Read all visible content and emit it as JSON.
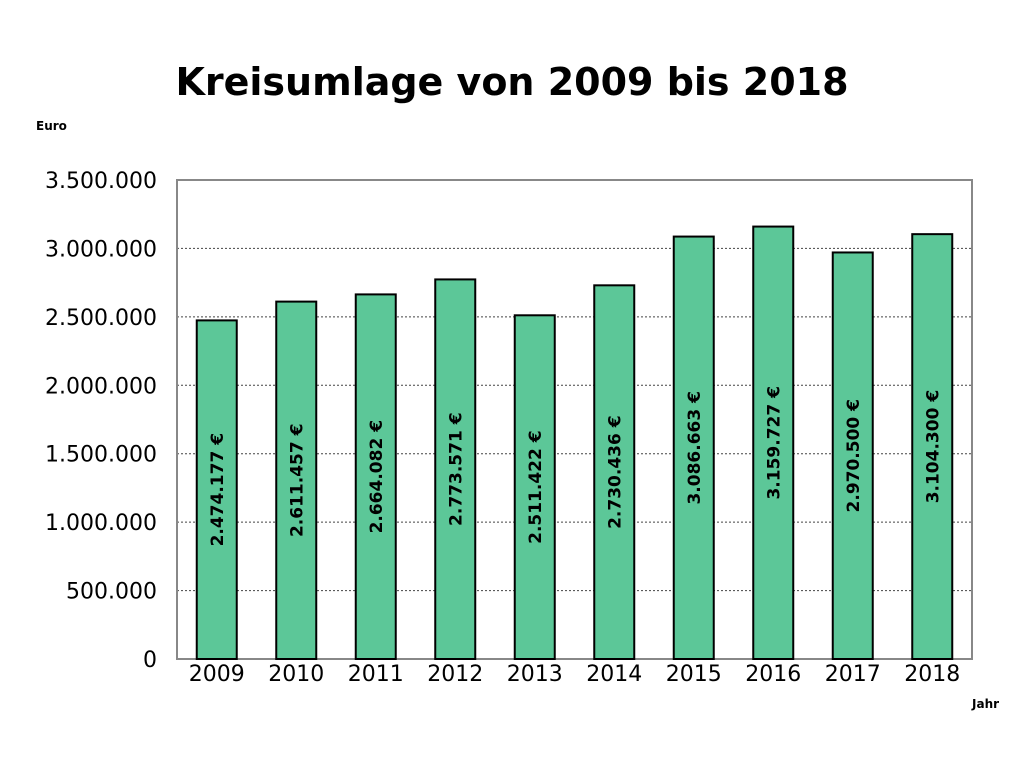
{
  "chart_data": {
    "type": "bar",
    "title": "Kreisumlage von 2009 bis 2018",
    "ylabel": "Euro",
    "xlabel": "Jahr",
    "categories": [
      "2009",
      "2010",
      "2011",
      "2012",
      "2013",
      "2014",
      "2015",
      "2016",
      "2017",
      "2018"
    ],
    "values": [
      2474177,
      2611457,
      2664082,
      2773571,
      2511422,
      2730436,
      3086663,
      3159727,
      2970500,
      3104300
    ],
    "data_labels": [
      "2.474.177 €",
      "2.611.457 €",
      "2.664.082 €",
      "2.773.571 €",
      "2.511.422 €",
      "2.730.436 €",
      "3.086.663 €",
      "3.159.727 €",
      "2.970.500 €",
      "3.104.300 €"
    ],
    "yticks": [
      0,
      500000,
      1000000,
      1500000,
      2000000,
      2500000,
      3000000,
      3500000
    ],
    "ytick_labels": [
      "0",
      "500.000",
      "1.000.000",
      "1.500.000",
      "2.000.000",
      "2.500.000",
      "3.000.000",
      "3.500.000"
    ],
    "ylim": [
      0,
      3500000
    ],
    "grid": true,
    "bar_color": "#5cc798"
  }
}
